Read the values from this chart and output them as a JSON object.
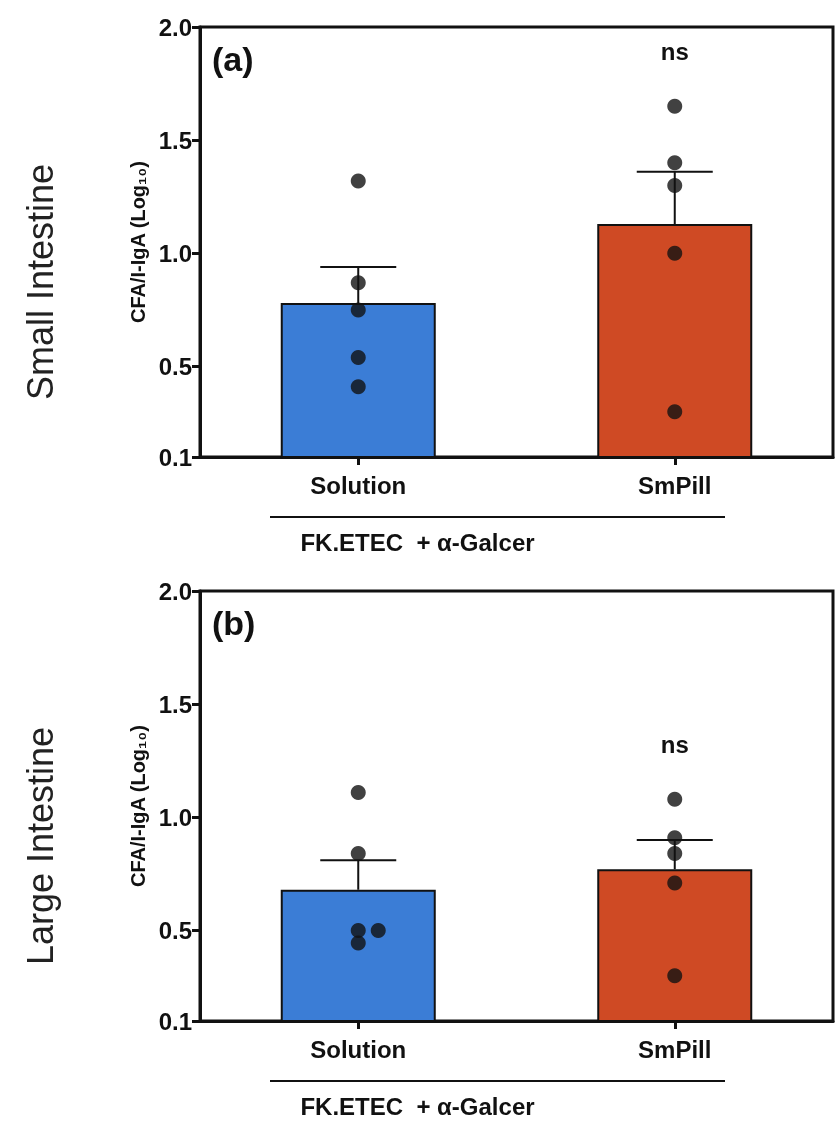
{
  "chart_data": [
    {
      "type": "bar",
      "title": "Small Intestine",
      "ylabel": "CFA/I-IgA (Log₁₀)",
      "xlabel": "FK.ETEC  + α-Galcer",
      "categories": [
        "Solution",
        "SmPill"
      ],
      "series": [
        {
          "type": "bar",
          "colors": [
            "#3b7dd6",
            "#cf4a24"
          ],
          "values": [
            0.78,
            1.13
          ],
          "errors": [
            [
              0.78,
              0.94
            ],
            [
              1.13,
              1.36
            ]
          ]
        },
        {
          "type": "scatter",
          "color": "#111111",
          "x": [
            "Solution",
            "Solution",
            "Solution",
            "Solution",
            "Solution",
            "SmPill",
            "SmPill",
            "SmPill",
            "SmPill",
            "SmPill"
          ],
          "values": [
            1.32,
            0.87,
            0.75,
            0.54,
            0.41,
            1.65,
            1.4,
            1.3,
            1.0,
            0.3
          ]
        }
      ],
      "ylim": [
        0.1,
        2
      ],
      "yticks": [
        0.1,
        {
          "value": 0.5,
          "label": "0.5"
        },
        {
          "value": 1,
          "label": "1.0"
        },
        {
          "value": 1.5,
          "label": "1.5"
        },
        {
          "value": 2,
          "label": "2.0"
        }
      ],
      "marker": "circle",
      "grid": false,
      "annotations": [
        "(a)",
        "ns"
      ]
    },
    {
      "type": "bar",
      "title": "Large Intestine",
      "ylabel": "CFA/I-IgA (Log₁₀)",
      "xlabel": "FK.ETEC  + α-Galcer",
      "categories": [
        "Solution",
        "SmPill"
      ],
      "series": [
        {
          "type": "bar",
          "colors": [
            "#3b7dd6",
            "#cf4a24"
          ],
          "values": [
            0.68,
            0.77
          ],
          "errors": [
            [
              0.68,
              0.81
            ],
            [
              0.77,
              0.9
            ]
          ]
        },
        {
          "type": "scatter",
          "color": "#111111",
          "x": [
            "Solution",
            "Solution",
            "Solution",
            "Solution",
            "Solution",
            "SmPill",
            "SmPill",
            "SmPill",
            "SmPill",
            "SmPill"
          ],
          "values": [
            1.11,
            0.84,
            0.5,
            0.445,
            0.5,
            1.08,
            0.91,
            0.84,
            0.71,
            0.3
          ]
        }
      ],
      "ylim": [
        0.1,
        2
      ],
      "yticks": [
        0.1,
        {
          "value": 0.5,
          "label": "0.5"
        },
        {
          "value": 1,
          "label": "1.0"
        },
        {
          "value": 1.5,
          "label": "1.5"
        },
        {
          "value": 2,
          "label": "2.0"
        }
      ],
      "marker": "circle",
      "grid": false,
      "annotations": [
        "(b)",
        "ns"
      ]
    }
  ]
}
